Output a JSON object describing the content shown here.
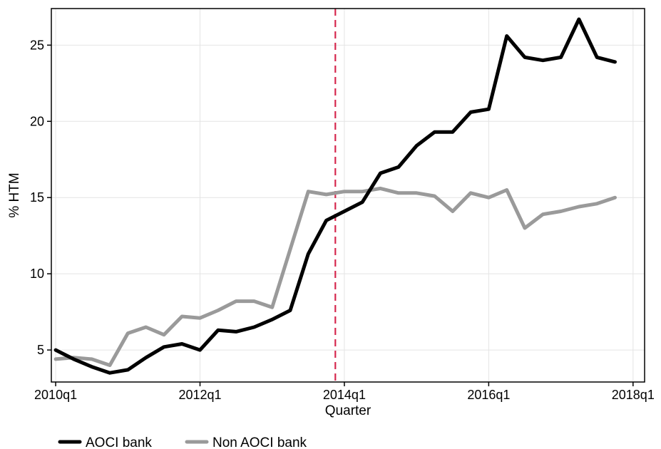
{
  "chart_data": {
    "type": "line",
    "xlabel": "Quarter",
    "ylabel": "% HTM",
    "x_ticks": [
      {
        "label": "2010q1",
        "value": 2010.0
      },
      {
        "label": "2012q1",
        "value": 2012.0
      },
      {
        "label": "2014q1",
        "value": 2014.0
      },
      {
        "label": "2016q1",
        "value": 2016.0
      },
      {
        "label": "2018q1",
        "value": 2018.0
      }
    ],
    "y_ticks": [
      5,
      10,
      15,
      20,
      25
    ],
    "xlim": [
      2009.94,
      2018.16
    ],
    "ylim": [
      2.9,
      27.4
    ],
    "grid": true,
    "vline": {
      "x": 2013.875,
      "color": "#d6294f",
      "style": "dashed"
    },
    "x": [
      2010.0,
      2010.25,
      2010.5,
      2010.75,
      2011.0,
      2011.25,
      2011.5,
      2011.75,
      2012.0,
      2012.25,
      2012.5,
      2012.75,
      2013.0,
      2013.25,
      2013.5,
      2013.75,
      2014.0,
      2014.25,
      2014.5,
      2014.75,
      2015.0,
      2015.25,
      2015.5,
      2015.75,
      2016.0,
      2016.25,
      2016.5,
      2016.75,
      2017.0,
      2017.25,
      2017.5,
      2017.75
    ],
    "series": [
      {
        "name": "AOCI bank",
        "color": "#000000",
        "values": [
          5.0,
          4.4,
          3.9,
          3.5,
          3.7,
          4.5,
          5.2,
          5.4,
          5.0,
          6.3,
          6.2,
          6.5,
          7.0,
          7.6,
          11.3,
          13.5,
          14.1,
          14.7,
          16.6,
          17.0,
          18.4,
          19.3,
          19.3,
          20.6,
          20.8,
          25.6,
          24.2,
          24.0,
          24.2,
          26.7,
          24.2,
          23.9
        ]
      },
      {
        "name": "Non AOCI bank",
        "color": "#9a9a9a",
        "values": [
          4.4,
          4.5,
          4.4,
          4.0,
          6.1,
          6.5,
          6.0,
          7.2,
          7.1,
          7.6,
          8.2,
          8.2,
          7.8,
          11.6,
          15.4,
          15.2,
          15.4,
          15.4,
          15.6,
          15.3,
          15.3,
          15.1,
          14.1,
          15.3,
          15.0,
          15.5,
          13.0,
          13.9,
          14.1,
          14.4,
          14.6,
          15.0
        ]
      }
    ],
    "legend_position": "bottom-left"
  }
}
